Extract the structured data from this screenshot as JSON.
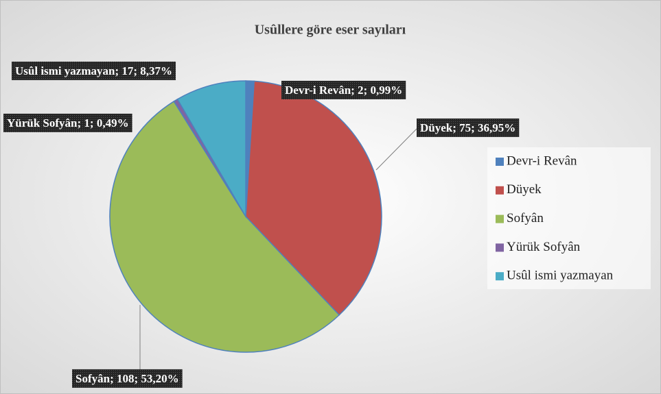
{
  "chart_data": {
    "type": "pie",
    "title": "Usûllere göre eser sayıları",
    "categories": [
      "Devr-i Revân",
      "Düyek",
      "Sofyân",
      "Yürük Sofyân",
      "Usûl ismi yazmayan"
    ],
    "values": [
      2,
      75,
      108,
      1,
      17
    ],
    "value_labels": [
      "Devr-i Revân; 2; 0,99%",
      "Düyek; 75; 36,95%",
      "Sofyân; 108; 53,20%",
      "Yürük Sofyân; 1; 0,49%",
      "Usûl ismi yazmayan; 17; 8,37%"
    ],
    "colors": [
      "#4f81bd",
      "#c0504d",
      "#9bbb59",
      "#8064a2",
      "#4bacc6"
    ],
    "legend": "right"
  }
}
